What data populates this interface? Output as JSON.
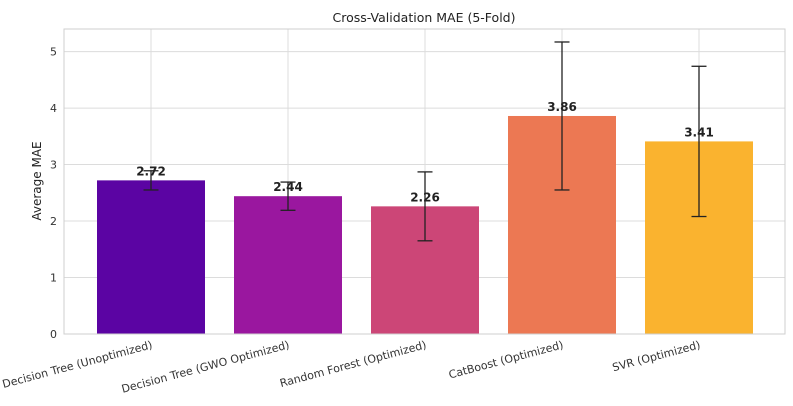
{
  "chart_data": {
    "type": "bar",
    "title": "Cross-Validation MAE (5-Fold)",
    "xlabel": "",
    "ylabel": "Average MAE",
    "ylim": [
      0,
      5.4
    ],
    "yticks": [
      0,
      1,
      2,
      3,
      4,
      5
    ],
    "grid": true,
    "categories": [
      "Decision Tree (Unoptimized)",
      "Decision Tree (GWO Optimized)",
      "Random Forest (Optimized)",
      "CatBoost (Optimized)",
      "SVR (Optimized)"
    ],
    "values": [
      2.72,
      2.44,
      2.26,
      3.86,
      3.41
    ],
    "value_labels": [
      "2.72",
      "2.44",
      "2.26",
      "3.86",
      "3.41"
    ],
    "errors": [
      0.17,
      0.25,
      0.61,
      1.31,
      1.33
    ],
    "colors": [
      "#5b04a3",
      "#9a179f",
      "#cc4677",
      "#ec7853",
      "#fab32f"
    ]
  }
}
